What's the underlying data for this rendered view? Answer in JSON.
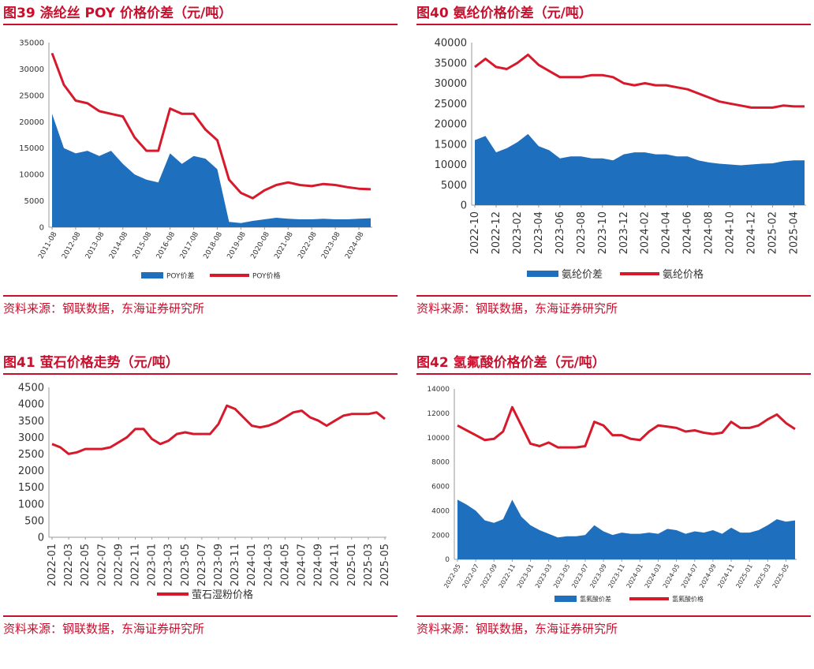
{
  "colors": {
    "accent": "#c8102e",
    "spread": "#1f6fbf",
    "price": "#d7192c"
  },
  "panels": [
    {
      "title": "图39  涤纶丝 POY 价格价差（元/吨）",
      "source": "资料来源：钢联数据，东海证券研究所",
      "chart_data": {
        "type": "area",
        "x": [
          "2011-08",
          "2012-02",
          "2012-08",
          "2013-02",
          "2013-08",
          "2014-02",
          "2014-08",
          "2015-02",
          "2015-08",
          "2016-02",
          "2016-08",
          "2017-02",
          "2017-08",
          "2018-02",
          "2018-08",
          "2019-02",
          "2019-08",
          "2020-02",
          "2020-08",
          "2021-02",
          "2021-08",
          "2022-02",
          "2022-08",
          "2023-02",
          "2023-08",
          "2024-02",
          "2024-08",
          "2025-02"
        ],
        "x_ticks": [
          "2011-08",
          "2012-08",
          "2013-08",
          "2014-08",
          "2015-08",
          "2016-08",
          "2017-08",
          "2018-08",
          "2019-08",
          "2020-08",
          "2021-08",
          "2022-08",
          "2023-08",
          "2024-08"
        ],
        "series": [
          {
            "name": "POY价差",
            "kind": "area",
            "values": [
              21500,
              15000,
              14000,
              14500,
              13500,
              14500,
              12000,
              10000,
              9000,
              8500,
              14000,
              12000,
              13500,
              13000,
              11000,
              1000,
              800,
              1200,
              1500,
              1800,
              1600,
              1500,
              1500,
              1600,
              1500,
              1500,
              1600,
              1700
            ]
          },
          {
            "name": "POY价格",
            "kind": "line",
            "values": [
              33000,
              27000,
              24000,
              23500,
              22000,
              21500,
              21000,
              17000,
              14500,
              14500,
              22500,
              21500,
              21500,
              18500,
              16500,
              9000,
              6500,
              5500,
              7000,
              8000,
              8500,
              8000,
              7800,
              8200,
              8000,
              7600,
              7300,
              7200
            ]
          }
        ],
        "ylim": [
          0,
          35000
        ],
        "yticks": [
          0,
          5000,
          10000,
          15000,
          20000,
          25000,
          30000,
          35000
        ]
      }
    },
    {
      "title": "图40  氨纶价格价差（元/吨）",
      "source": "资料来源：钢联数据，东海证券研究所",
      "chart_data": {
        "type": "area",
        "x": [
          "2022-10",
          "2022-11",
          "2022-12",
          "2023-01",
          "2023-02",
          "2023-03",
          "2023-04",
          "2023-05",
          "2023-06",
          "2023-07",
          "2023-08",
          "2023-09",
          "2023-10",
          "2023-11",
          "2023-12",
          "2024-01",
          "2024-02",
          "2024-03",
          "2024-04",
          "2024-05",
          "2024-06",
          "2024-07",
          "2024-08",
          "2024-09",
          "2024-10",
          "2024-11",
          "2024-12",
          "2025-01",
          "2025-02",
          "2025-03",
          "2025-04",
          "2025-05"
        ],
        "x_ticks": [
          "2022-10",
          "2022-12",
          "2023-02",
          "2023-04",
          "2023-06",
          "2023-08",
          "2023-10",
          "2023-12",
          "2024-02",
          "2024-04",
          "2024-06",
          "2024-08",
          "2024-10",
          "2024-12",
          "2025-02",
          "2025-04"
        ],
        "series": [
          {
            "name": "氨纶价差",
            "kind": "area",
            "values": [
              16000,
              17000,
              13000,
              14000,
              15500,
              17500,
              14500,
              13500,
              11500,
              12000,
              12000,
              11500,
              11500,
              11000,
              12500,
              13000,
              13000,
              12500,
              12500,
              12000,
              12000,
              11000,
              10500,
              10200,
              10000,
              9800,
              10000,
              10200,
              10300,
              10800,
              11000,
              11000
            ]
          },
          {
            "name": "氨纶价格",
            "kind": "line",
            "values": [
              34000,
              36000,
              34000,
              33500,
              35000,
              37000,
              34500,
              33000,
              31500,
              31500,
              31500,
              32000,
              32000,
              31500,
              30000,
              29500,
              30000,
              29500,
              29500,
              29000,
              28500,
              27500,
              26500,
              25500,
              25000,
              24500,
              24000,
              24000,
              24000,
              24500,
              24300,
              24300
            ]
          }
        ],
        "ylim": [
          0,
          40000
        ],
        "yticks": [
          0,
          5000,
          10000,
          15000,
          20000,
          25000,
          30000,
          35000,
          40000
        ]
      }
    },
    {
      "title": "图41  萤石价格走势（元/吨）",
      "source": "资料来源：钢联数据，东海证券研究所",
      "chart_data": {
        "type": "line",
        "x": [
          "2022-01",
          "2022-02",
          "2022-03",
          "2022-04",
          "2022-05",
          "2022-06",
          "2022-07",
          "2022-08",
          "2022-09",
          "2022-10",
          "2022-11",
          "2022-12",
          "2023-01",
          "2023-02",
          "2023-03",
          "2023-04",
          "2023-05",
          "2023-06",
          "2023-07",
          "2023-08",
          "2023-09",
          "2023-10",
          "2023-11",
          "2023-12",
          "2024-01",
          "2024-02",
          "2024-03",
          "2024-04",
          "2024-05",
          "2024-06",
          "2024-07",
          "2024-08",
          "2024-09",
          "2024-10",
          "2024-11",
          "2024-12",
          "2025-01",
          "2025-02",
          "2025-03",
          "2025-04",
          "2025-05"
        ],
        "x_ticks": [
          "2022-01",
          "2022-03",
          "2022-05",
          "2022-07",
          "2022-09",
          "2022-11",
          "2023-01",
          "2023-03",
          "2023-05",
          "2023-07",
          "2023-09",
          "2023-11",
          "2024-01",
          "2024-03",
          "2024-05",
          "2024-07",
          "2024-09",
          "2024-11",
          "2025-01",
          "2025-03",
          "2025-05"
        ],
        "series": [
          {
            "name": "萤石湿粉价格",
            "kind": "line",
            "values": [
              2800,
              2700,
              2500,
              2550,
              2650,
              2650,
              2650,
              2700,
              2850,
              3000,
              3250,
              3250,
              2950,
              2800,
              2900,
              3100,
              3150,
              3100,
              3100,
              3100,
              3400,
              3950,
              3850,
              3600,
              3350,
              3300,
              3350,
              3450,
              3600,
              3750,
              3800,
              3600,
              3500,
              3350,
              3500,
              3650,
              3700,
              3700,
              3700,
              3750,
              3550
            ]
          }
        ],
        "ylim": [
          0,
          4500
        ],
        "yticks": [
          0,
          500,
          1000,
          1500,
          2000,
          2500,
          3000,
          3500,
          4000,
          4500
        ]
      }
    },
    {
      "title": "图42  氢氟酸价格价差（元/吨）",
      "source": "资料来源：钢联数据，东海证券研究所",
      "chart_data": {
        "type": "area",
        "x": [
          "2022-05",
          "2022-06",
          "2022-07",
          "2022-08",
          "2022-09",
          "2022-10",
          "2022-11",
          "2022-12",
          "2023-01",
          "2023-02",
          "2023-03",
          "2023-04",
          "2023-05",
          "2023-06",
          "2023-07",
          "2023-08",
          "2023-09",
          "2023-10",
          "2023-11",
          "2023-12",
          "2024-01",
          "2024-02",
          "2024-03",
          "2024-04",
          "2024-05",
          "2024-06",
          "2024-07",
          "2024-08",
          "2024-09",
          "2024-10",
          "2024-11",
          "2024-12",
          "2025-01",
          "2025-02",
          "2025-03",
          "2025-04",
          "2025-05",
          "2025-06"
        ],
        "x_ticks": [
          "2022-05",
          "2022-07",
          "2022-09",
          "2022-11",
          "2023-01",
          "2023-03",
          "2023-05",
          "2023-07",
          "2023-09",
          "2023-11",
          "2024-01",
          "2024-03",
          "2024-05",
          "2024-07",
          "2024-09",
          "2024-11",
          "2025-01",
          "2025-03",
          "2025-05"
        ],
        "series": [
          {
            "name": "氢氟酸价差",
            "kind": "area",
            "values": [
              4900,
              4500,
              4000,
              3200,
              3000,
              3300,
              4900,
              3500,
              2800,
              2400,
              2100,
              1800,
              1900,
              1900,
              2000,
              2800,
              2300,
              2000,
              2200,
              2100,
              2100,
              2200,
              2100,
              2500,
              2400,
              2100,
              2300,
              2200,
              2400,
              2100,
              2600,
              2200,
              2200,
              2400,
              2800,
              3300,
              3100,
              3200
            ]
          },
          {
            "name": "氢氟酸价格",
            "kind": "line",
            "values": [
              11000,
              10600,
              10200,
              9800,
              9900,
              10500,
              12500,
              11000,
              9500,
              9300,
              9600,
              9200,
              9200,
              9200,
              9300,
              11300,
              11000,
              10200,
              10200,
              9900,
              9800,
              10500,
              11000,
              10900,
              10800,
              10500,
              10600,
              10400,
              10300,
              10400,
              11300,
              10800,
              10800,
              11000,
              11500,
              11900,
              11200,
              10700
            ]
          }
        ],
        "ylim": [
          0,
          14000
        ],
        "yticks": [
          0,
          2000,
          4000,
          6000,
          8000,
          10000,
          12000,
          14000
        ]
      }
    }
  ]
}
